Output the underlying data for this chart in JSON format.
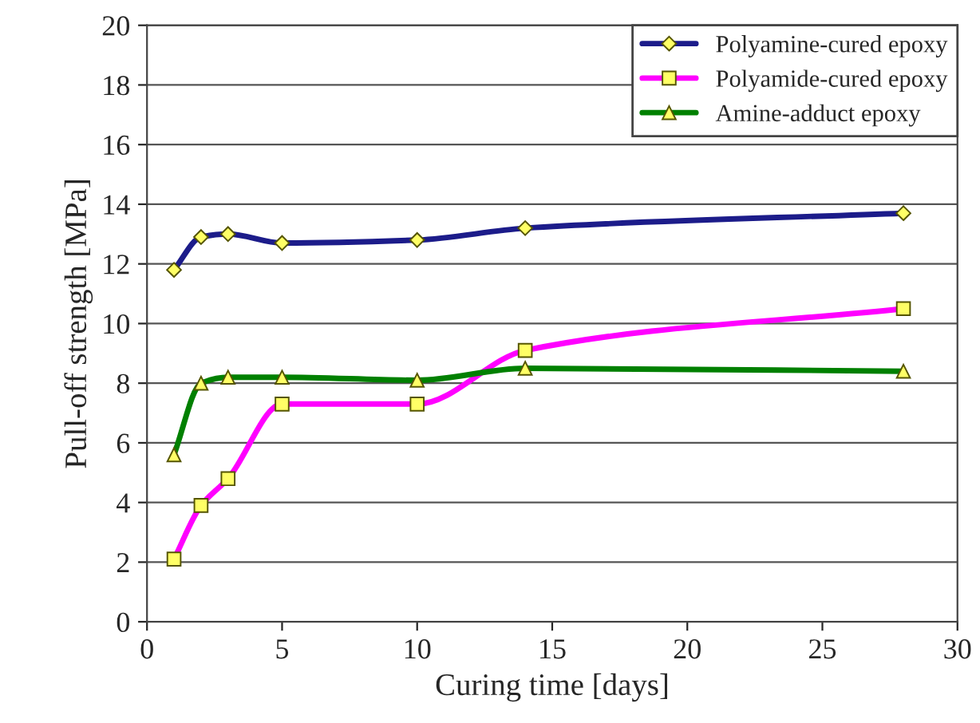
{
  "chart_data": {
    "type": "line",
    "xlabel": "Curing time [days]",
    "ylabel": "Pull-off strength [MPa]",
    "xlim": [
      0,
      30
    ],
    "xticks": [
      0,
      5,
      10,
      15,
      20,
      25,
      30
    ],
    "ylim": [
      0,
      20
    ],
    "yticks": [
      0,
      2,
      4,
      6,
      8,
      10,
      12,
      14,
      16,
      18,
      20
    ],
    "grid": "y",
    "legend": "top right",
    "line_style": "solid",
    "x": [
      1,
      2,
      3,
      5,
      10,
      14,
      28
    ],
    "series": [
      {
        "name": "Polyamine-cured epoxy",
        "color": "#1c1c8a",
        "marker": "diamond",
        "values": [
          11.8,
          12.9,
          13.0,
          12.7,
          12.8,
          13.2,
          13.7
        ]
      },
      {
        "name": "Polyamide-cured epoxy",
        "color": "#ff00ff",
        "marker": "square",
        "values": [
          2.1,
          3.9,
          4.8,
          7.3,
          7.3,
          9.1,
          10.5
        ]
      },
      {
        "name": "Amine-adduct epoxy",
        "color": "#008000",
        "marker": "triangle",
        "values": [
          5.6,
          8.0,
          8.2,
          8.2,
          8.1,
          8.5,
          8.4
        ]
      }
    ]
  }
}
